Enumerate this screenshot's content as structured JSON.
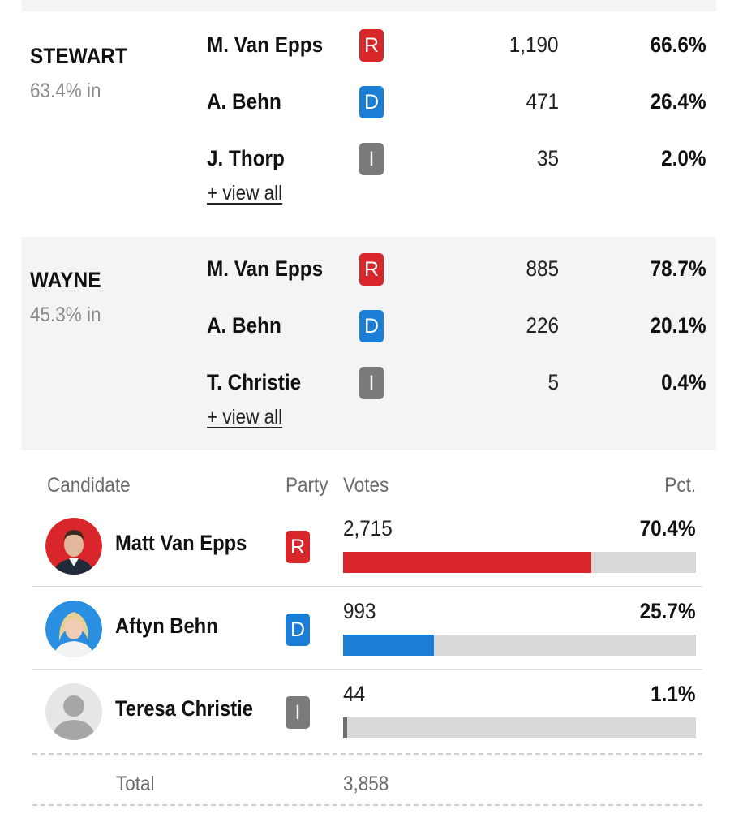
{
  "counties": [
    {
      "name": "STEWART",
      "reporting": "63.4% in",
      "candidates": [
        {
          "name": "M. Van Epps",
          "party": "R",
          "votes": "1,190",
          "pct": "66.6%"
        },
        {
          "name": "A. Behn",
          "party": "D",
          "votes": "471",
          "pct": "26.4%"
        },
        {
          "name": "J. Thorp",
          "party": "I",
          "votes": "35",
          "pct": "2.0%"
        }
      ],
      "view_all": "+ view all"
    },
    {
      "name": "WAYNE",
      "reporting": "45.3% in",
      "candidates": [
        {
          "name": "M. Van Epps",
          "party": "R",
          "votes": "885",
          "pct": "78.7%"
        },
        {
          "name": "A. Behn",
          "party": "D",
          "votes": "226",
          "pct": "20.1%"
        },
        {
          "name": "T. Christie",
          "party": "I",
          "votes": "5",
          "pct": "0.4%"
        }
      ],
      "view_all": "+ view all"
    }
  ],
  "summary": {
    "headers": {
      "candidate": "Candidate",
      "party": "Party",
      "votes": "Votes",
      "pct": "Pct."
    },
    "rows": [
      {
        "name": "Matt Van Epps",
        "party": "R",
        "votes": "2,715",
        "pct": "70.4%",
        "share": 0.704
      },
      {
        "name": "Aftyn Behn",
        "party": "D",
        "votes": "993",
        "pct": "25.7%",
        "share": 0.257
      },
      {
        "name": "Teresa Christie",
        "party": "I",
        "votes": "44",
        "pct": "1.1%",
        "share": 0.011
      }
    ],
    "total_label": "Total",
    "total_votes": "3,858"
  },
  "colors": {
    "R": "#d8262b",
    "D": "#1b7ed6",
    "I": "#7a7a7a",
    "bar_track": "#d9d9d9",
    "shade": "#f4f4f4"
  },
  "icons": {
    "avatar_placeholder": "person-silhouette-icon"
  }
}
